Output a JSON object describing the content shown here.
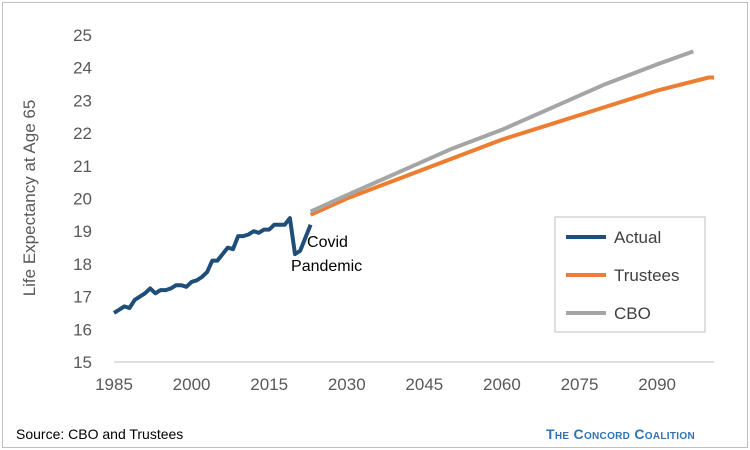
{
  "chart_data": {
    "type": "line",
    "ylabel": "Life Expectancy at Age 65",
    "xlabel": "",
    "xlim": [
      1985,
      2101
    ],
    "ylim": [
      15,
      25
    ],
    "xticks": [
      1985,
      2000,
      2015,
      2030,
      2045,
      2060,
      2075,
      2090
    ],
    "yticks": [
      15,
      16,
      17,
      18,
      19,
      20,
      21,
      22,
      23,
      24,
      25
    ],
    "grid": false,
    "legend_position": "right",
    "annotation": {
      "text_line1": "Covid",
      "text_line2": "Pandemic",
      "x": 2020,
      "y": 18.4
    },
    "series": [
      {
        "name": "Actual",
        "color": "#1f4e79",
        "x": [
          1985,
          1986,
          1987,
          1988,
          1989,
          1990,
          1991,
          1992,
          1993,
          1994,
          1995,
          1996,
          1997,
          1998,
          1999,
          2000,
          2001,
          2002,
          2003,
          2004,
          2005,
          2006,
          2007,
          2008,
          2009,
          2010,
          2011,
          2012,
          2013,
          2014,
          2015,
          2016,
          2017,
          2018,
          2019,
          2020,
          2021,
          2022,
          2023
        ],
        "values": [
          16.5,
          16.6,
          16.7,
          16.65,
          16.9,
          17.0,
          17.1,
          17.25,
          17.1,
          17.2,
          17.2,
          17.25,
          17.35,
          17.35,
          17.3,
          17.45,
          17.5,
          17.6,
          17.75,
          18.1,
          18.1,
          18.3,
          18.5,
          18.45,
          18.85,
          18.85,
          18.9,
          19.0,
          18.95,
          19.05,
          19.05,
          19.2,
          19.2,
          19.2,
          19.4,
          18.3,
          18.4,
          18.8,
          19.2
        ]
      },
      {
        "name": "Trustees",
        "color": "#ed7d31",
        "x": [
          2023,
          2030,
          2040,
          2050,
          2060,
          2070,
          2080,
          2090,
          2100,
          2101
        ],
        "values": [
          19.5,
          20.0,
          20.6,
          21.2,
          21.8,
          22.3,
          22.8,
          23.3,
          23.7,
          23.7
        ]
      },
      {
        "name": "CBO",
        "color": "#a5a5a5",
        "x": [
          2023,
          2030,
          2040,
          2050,
          2060,
          2070,
          2080,
          2090,
          2097
        ],
        "values": [
          19.6,
          20.1,
          20.8,
          21.5,
          22.1,
          22.8,
          23.5,
          24.1,
          24.5
        ]
      }
    ]
  },
  "footer": {
    "source": "Source: CBO and Trustees",
    "brand": "The Concord Coalition"
  }
}
